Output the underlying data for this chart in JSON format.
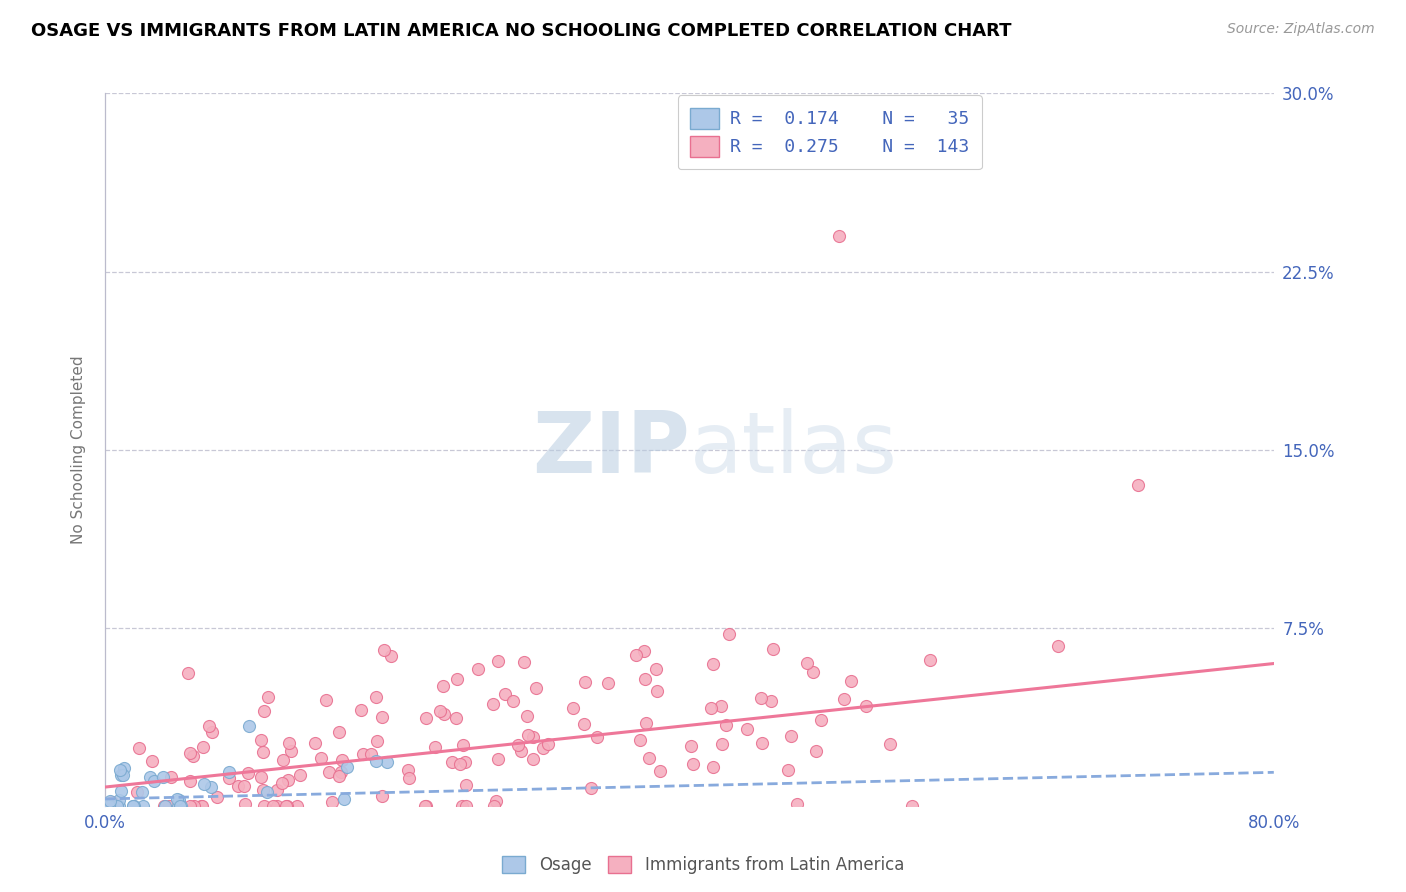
{
  "title": "OSAGE VS IMMIGRANTS FROM LATIN AMERICA NO SCHOOLING COMPLETED CORRELATION CHART",
  "source_text": "Source: ZipAtlas.com",
  "ylabel": "No Schooling Completed",
  "watermark_zip": "ZIP",
  "watermark_atlas": "atlas",
  "xmin": 0.0,
  "xmax": 0.8,
  "ymin": 0.0,
  "ymax": 0.3,
  "osage_R": 0.174,
  "osage_N": 35,
  "latin_R": 0.275,
  "latin_N": 143,
  "osage_color": "#adc8e8",
  "latin_color": "#f5b0c0",
  "osage_edge_color": "#7aaad0",
  "latin_edge_color": "#e87090",
  "osage_line_color": "#88aadd",
  "latin_line_color": "#ee7799",
  "background_color": "#ffffff",
  "title_fontsize": 13,
  "axis_tick_color": "#4466bb",
  "grid_color": "#bbbbcc",
  "legend_label_color": "#4466bb",
  "watermark_color": "#ccd8ea",
  "ylabel_color": "#777777",
  "source_color": "#999999"
}
